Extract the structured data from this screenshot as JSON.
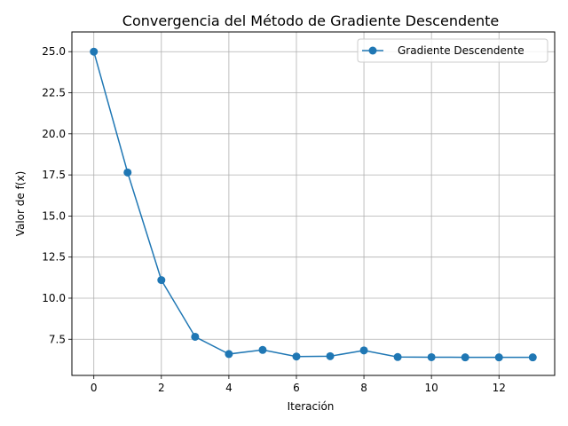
{
  "chart_data": {
    "type": "line",
    "title": "Convergencia del Método de Gradiente Descendente",
    "xlabel": "Iteración",
    "ylabel": "Valor de f(x)",
    "xlim": [
      -0.65,
      13.65
    ],
    "ylim": [
      5.3,
      26.2
    ],
    "xticks": [
      0,
      2,
      4,
      6,
      8,
      10,
      12
    ],
    "xtick_labels": [
      "0",
      "2",
      "4",
      "6",
      "8",
      "10",
      "12"
    ],
    "yticks": [
      7.5,
      10.0,
      12.5,
      15.0,
      17.5,
      20.0,
      22.5,
      25.0
    ],
    "ytick_labels": [
      "7.5",
      "10.0",
      "12.5",
      "15.0",
      "17.5",
      "20.0",
      "22.5",
      "25.0"
    ],
    "grid": true,
    "legend_position": "top-right",
    "series": [
      {
        "name": "Gradiente Descendente",
        "color": "#1f77b4",
        "marker": "circle",
        "x": [
          0,
          1,
          2,
          3,
          4,
          5,
          6,
          7,
          8,
          9,
          10,
          11,
          12,
          13
        ],
        "y": [
          25.0,
          17.65,
          11.1,
          7.65,
          6.6,
          6.85,
          6.45,
          6.47,
          6.82,
          6.42,
          6.41,
          6.4,
          6.4,
          6.4
        ]
      }
    ]
  }
}
